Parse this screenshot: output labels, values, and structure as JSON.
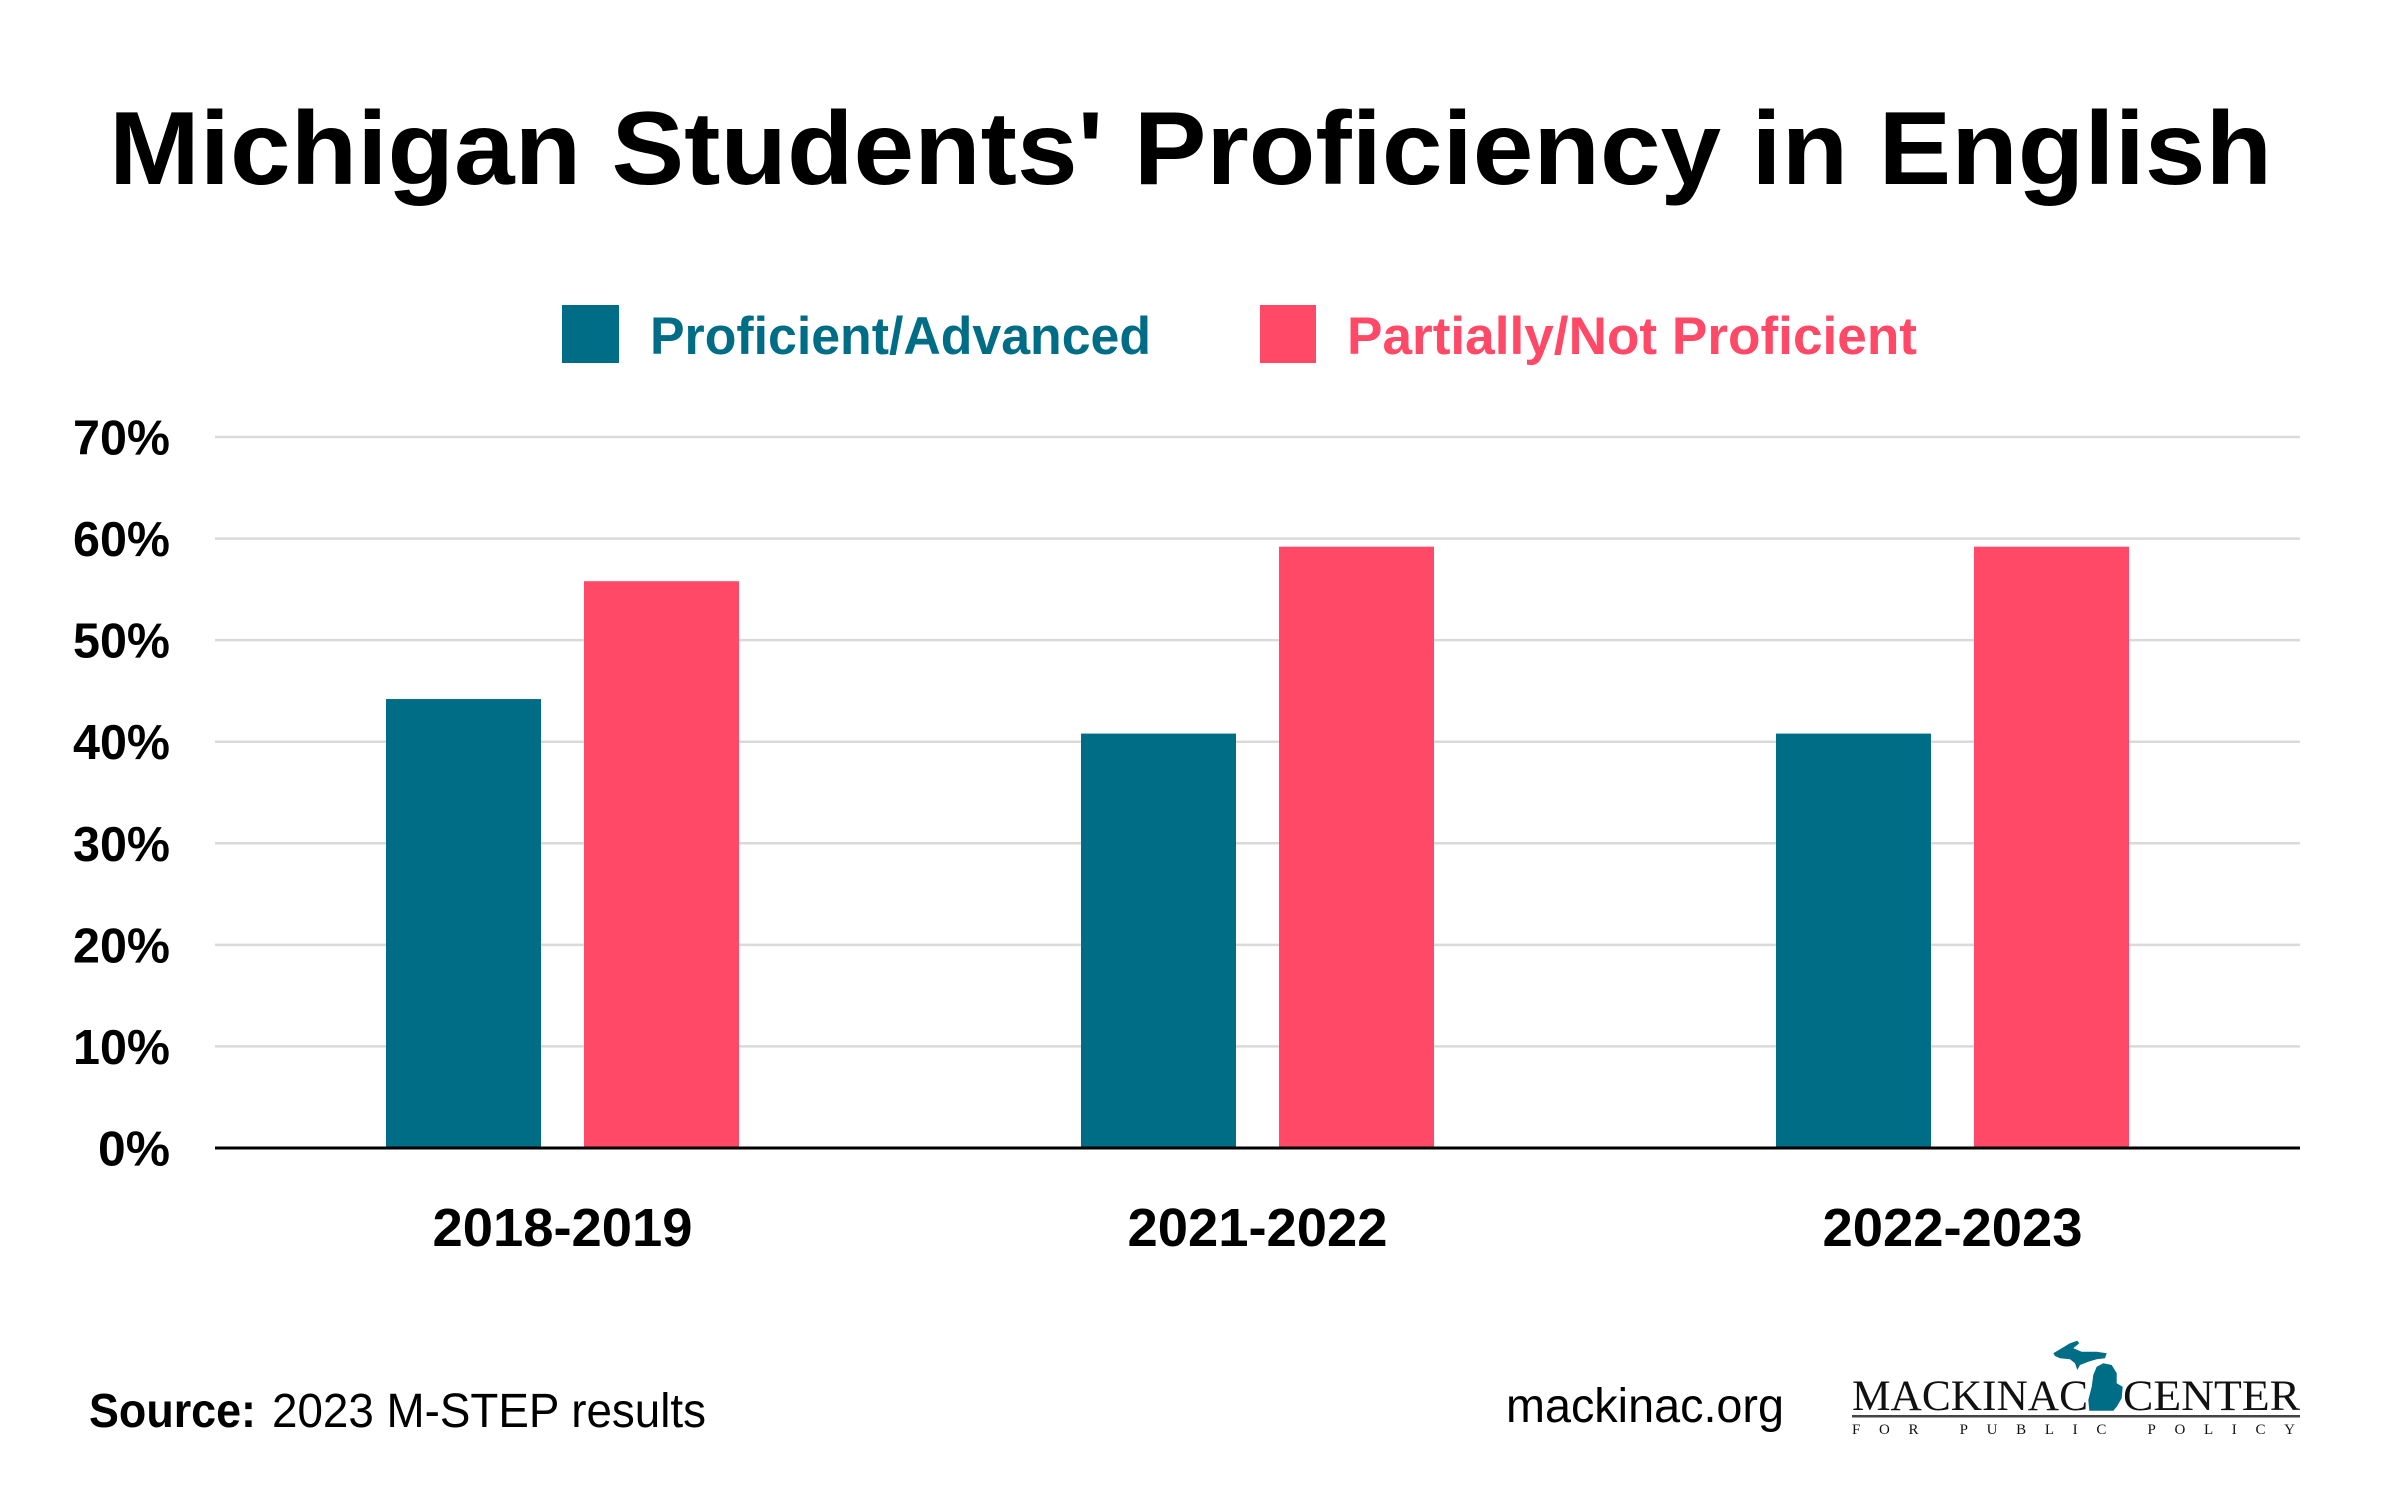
{
  "chart_data": {
    "type": "bar",
    "title": "Michigan Students' Proficiency in English",
    "xlabel": "",
    "ylabel": "",
    "categories": [
      "2018-2019",
      "2021-2022",
      "2022-2023"
    ],
    "series": [
      {
        "name": "Proficient/Advanced",
        "values": [
          44.2,
          40.8,
          40.8
        ],
        "color": "#006d87"
      },
      {
        "name": "Partially/Not Proficient",
        "values": [
          55.8,
          59.2,
          59.2
        ],
        "color": "#ff4966"
      }
    ],
    "ylim": [
      0,
      70
    ],
    "yticks": [
      0,
      10,
      20,
      30,
      40,
      50,
      60,
      70
    ],
    "ytick_labels": [
      "0%",
      "10%",
      "20%",
      "30%",
      "40%",
      "50%",
      "60%",
      "70%"
    ],
    "grid": true,
    "gridline_color": "#dadada",
    "legend_position": "top"
  },
  "footer": {
    "source_label": "Source:",
    "source_text": "2023 M-STEP results",
    "website": "mackinac.org"
  },
  "logo": {
    "word_left": "MACKINAC",
    "word_right": "CENTER",
    "tagline": "FOR PUBLIC POLICY",
    "color": "#006d87"
  }
}
